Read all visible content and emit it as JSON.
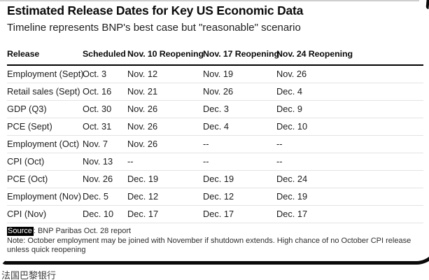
{
  "chart_data": {
    "type": "table",
    "title": "Estimated Release Dates for Key US Economic Data",
    "subtitle": "Timeline represents BNP's best case but \"reasonable\" scenario",
    "columns": [
      "Release",
      "Scheduled",
      "Nov. 10 Reopening",
      "Nov. 17 Reopening",
      "Nov. 24 Reopening"
    ],
    "rows": [
      [
        "Employment (Sept)",
        "Oct. 3",
        "Nov. 12",
        "Nov. 19",
        "Nov. 26"
      ],
      [
        "Retail sales (Sept)",
        "Oct. 16",
        "Nov. 21",
        "Nov. 26",
        "Dec. 4"
      ],
      [
        "GDP (Q3)",
        "Oct. 30",
        "Nov. 26",
        "Dec. 3",
        "Dec. 9"
      ],
      [
        "PCE (Sept)",
        "Oct. 31",
        "Nov. 26",
        "Dec. 4",
        "Dec. 10"
      ],
      [
        "Employment (Oct)",
        "Nov. 7",
        "Nov. 26",
        "--",
        "--"
      ],
      [
        "CPI (Oct)",
        "Nov. 13",
        "--",
        "--",
        "--"
      ],
      [
        "PCE (Oct)",
        "Nov. 26",
        "Dec. 19",
        "Dec. 19",
        "Dec. 24"
      ],
      [
        "Employment (Nov)",
        "Dec. 5",
        "Dec. 12",
        "Dec. 12",
        "Dec. 19"
      ],
      [
        "CPI (Nov)",
        "Dec. 10",
        "Dec. 17",
        "Dec. 17",
        "Dec. 17"
      ]
    ],
    "layout_hints": {
      "grid": "horizontal row rules only",
      "header_rule": "thick black",
      "alignment": "left"
    }
  },
  "footer": {
    "source_label": "Source",
    "source_rest": ": BNP Paribas Oct. 28 report",
    "note": "Note: October employment may be joined with November if shutdown extends. High chance of no October CPI release unless quick reopening"
  },
  "caption": "法国巴黎银行",
  "colors": {
    "background": "#ffffff",
    "text": "#1c1c1c",
    "title": "#0a0a0a",
    "header_rule": "#000000",
    "row_rule": "#e3e3e3",
    "source_highlight_bg": "#000000",
    "source_highlight_fg": "#ffffff",
    "card_border": "#0a0a0a"
  }
}
